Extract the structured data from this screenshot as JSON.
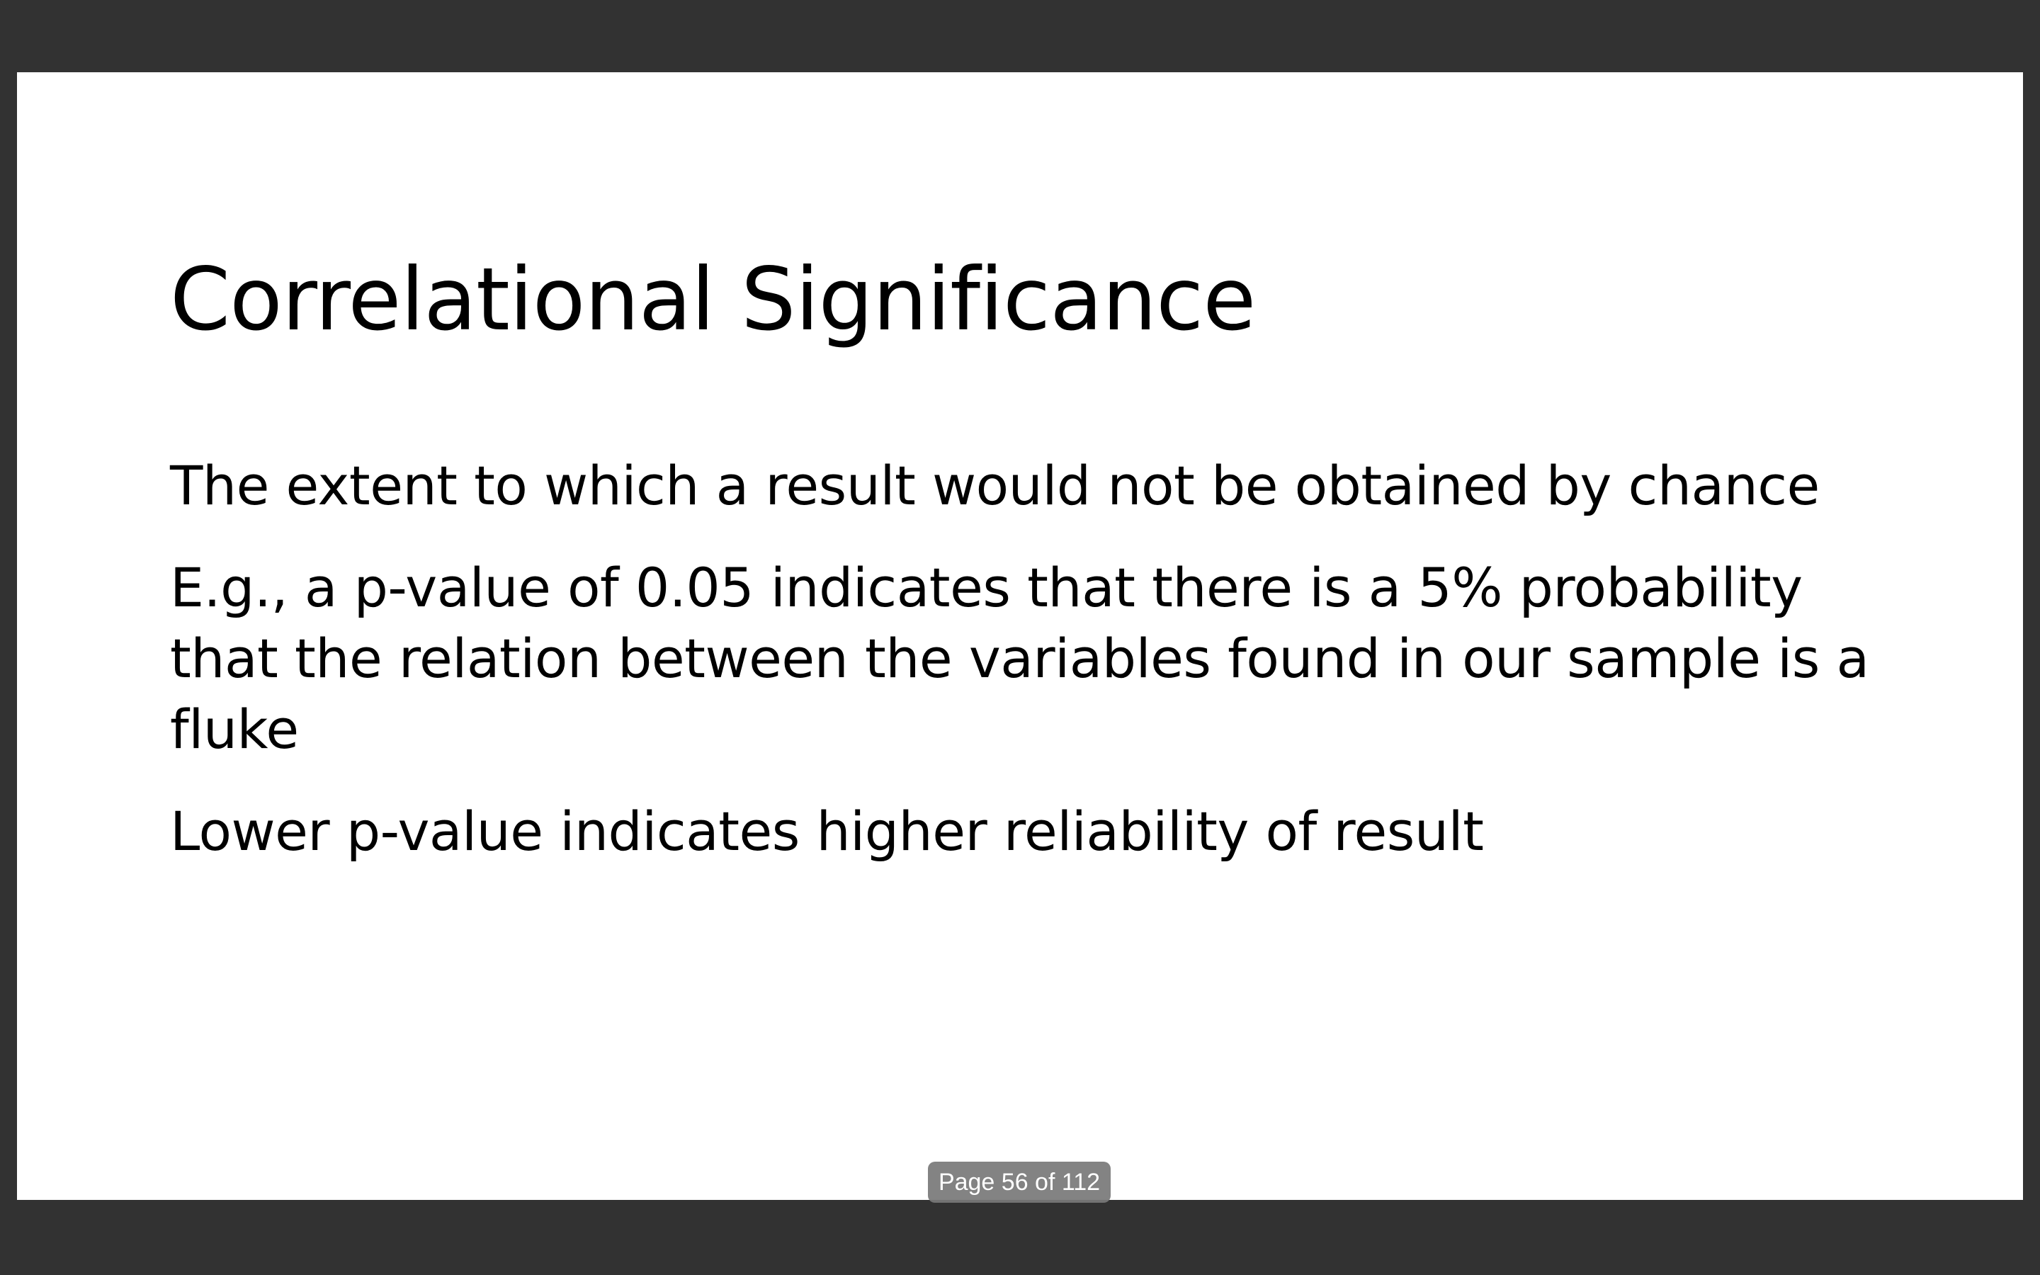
{
  "slide": {
    "title": "Correlational Significance",
    "bullets": [
      "The extent to which a result would not be obtained by chance",
      "E.g., a p-value of 0.05 indicates that there is a 5% probability that the relation between the variables found in our sample is a fluke",
      "Lower p-value indicates higher reliability of result"
    ]
  },
  "viewer": {
    "page_indicator": "Page 56 of 112",
    "background_color": "#323232",
    "page_color": "#ffffff"
  }
}
